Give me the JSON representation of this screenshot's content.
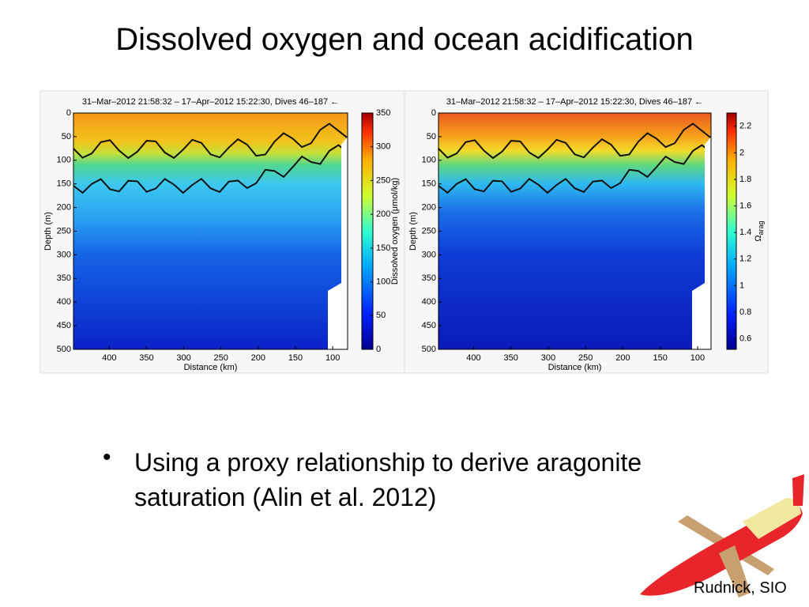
{
  "slide": {
    "title": "Dissolved oxygen and ocean acidification",
    "bullets": [
      "Using a proxy relationship to derive aragonite saturation (Alin et al. 2012)"
    ],
    "credit": "Rudnick, SIO"
  },
  "figures": [
    {
      "title": "31–Mar–2012 21:58:32 – 17–Apr–2012 15:22:30, Dives 46–187 ←",
      "xlabel": "Distance (km)",
      "ylabel": "Depth (m)",
      "xlim": [
        448,
        80
      ],
      "xticks": [
        400,
        350,
        300,
        250,
        200,
        150,
        100
      ],
      "ylim": [
        0,
        500
      ],
      "yticks": [
        0,
        50,
        100,
        150,
        200,
        250,
        300,
        350,
        400,
        450,
        500
      ],
      "colorbar": {
        "label": "Dissolved oxygen (μmol/kg)",
        "lim": [
          0,
          350
        ],
        "ticks": [
          0,
          50,
          100,
          150,
          200,
          250,
          300,
          350
        ]
      }
    },
    {
      "title": "31–Mar–2012 21:58:32 – 17–Apr–2012 15:22:30, Dives 46–187 ←",
      "xlabel": "Distance (km)",
      "ylabel": "Depth (m)",
      "xlim": [
        447,
        82
      ],
      "xticks": [
        400,
        350,
        300,
        250,
        200,
        150,
        100
      ],
      "ylim": [
        0,
        500
      ],
      "yticks": [
        0,
        50,
        100,
        150,
        200,
        250,
        300,
        350,
        400,
        450,
        500
      ],
      "colorbar": {
        "label": "Ω",
        "label_sub": "arag",
        "lim": [
          0.52,
          2.3
        ],
        "ticks": [
          0.6,
          0.8,
          1,
          1.2,
          1.4,
          1.6,
          1.8,
          2,
          2.2
        ]
      }
    }
  ]
}
